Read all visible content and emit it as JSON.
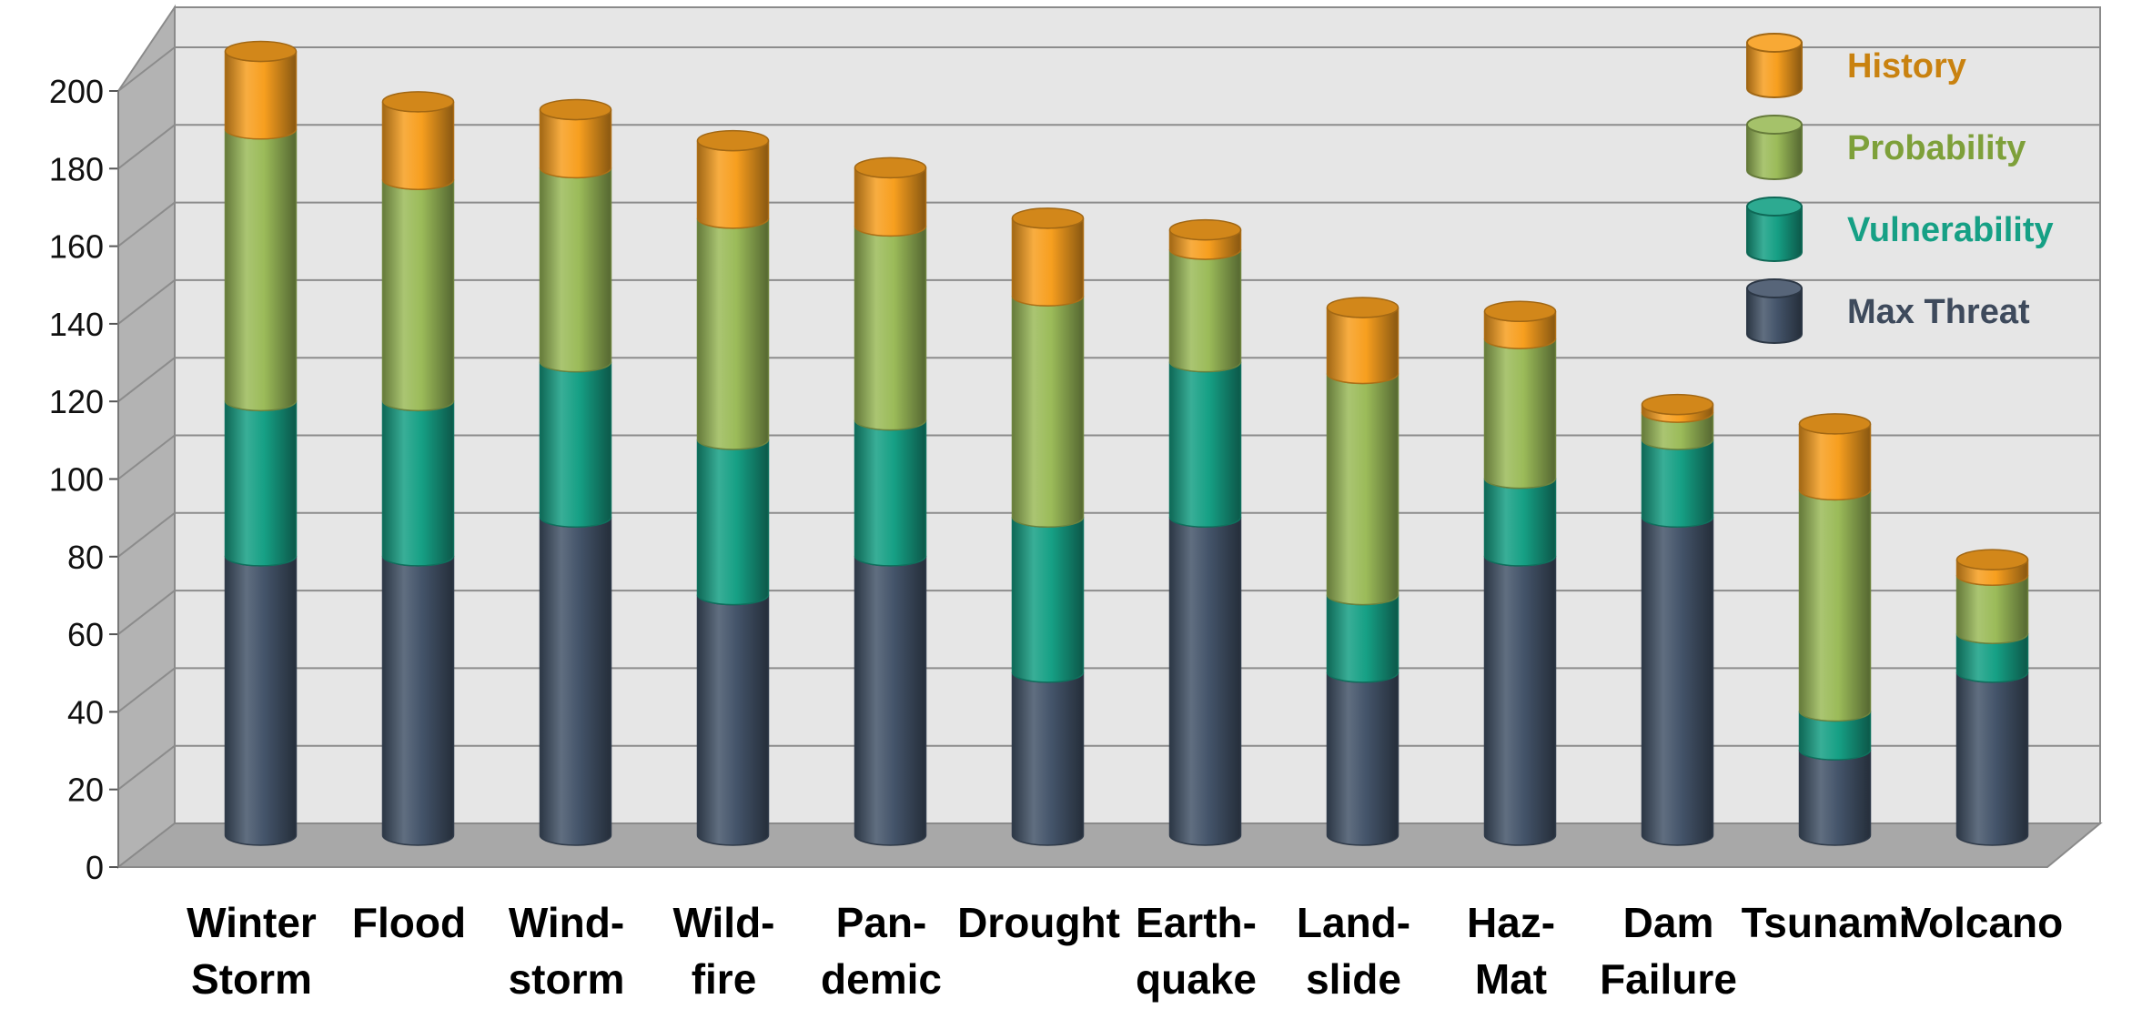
{
  "chart_data": {
    "type": "bar",
    "stacked": true,
    "style": "3d-cylinder",
    "categories": [
      [
        "Winter",
        "Storm"
      ],
      [
        "Flood"
      ],
      [
        "Wind-",
        "storm"
      ],
      [
        "Wild-",
        "fire"
      ],
      [
        "Pan-",
        "demic"
      ],
      [
        "Drought"
      ],
      [
        "Earth-",
        "quake"
      ],
      [
        "Land-",
        "slide"
      ],
      [
        "Haz-",
        "Mat"
      ],
      [
        "Dam",
        "Failure"
      ],
      [
        "Tsunami"
      ],
      [
        "Volcano"
      ]
    ],
    "series": [
      {
        "name": "Max Threat",
        "color": "#44546a",
        "values": [
          72,
          72,
          82,
          62,
          72,
          42,
          82,
          42,
          72,
          82,
          22,
          42
        ]
      },
      {
        "name": "Vulnerability",
        "color": "#16a085",
        "values": [
          40,
          40,
          40,
          40,
          35,
          40,
          40,
          20,
          20,
          20,
          10,
          10
        ]
      },
      {
        "name": "Probability",
        "color": "#9bbb59",
        "values": [
          70,
          57,
          50,
          57,
          50,
          57,
          29,
          57,
          36,
          7,
          57,
          15
        ]
      },
      {
        "name": "History",
        "color": "#f79f1f",
        "values": [
          20,
          20,
          15,
          20,
          15,
          20,
          5,
          17,
          7,
          2,
          17,
          4
        ]
      }
    ],
    "ylim": [
      0,
      200
    ],
    "yticks": [
      "0",
      "20",
      "40",
      "60",
      "80",
      "100",
      "120",
      "140",
      "160",
      "180",
      "200"
    ],
    "grid": true,
    "legend_position": "top-right",
    "legend_order": [
      "History",
      "Probability",
      "Vulnerability",
      "Max Threat"
    ],
    "legend_text_colors": {
      "History": "#c98210",
      "Probability": "#7ea03a",
      "Vulnerability": "#16a085",
      "Max Threat": "#3e4a5c"
    }
  }
}
